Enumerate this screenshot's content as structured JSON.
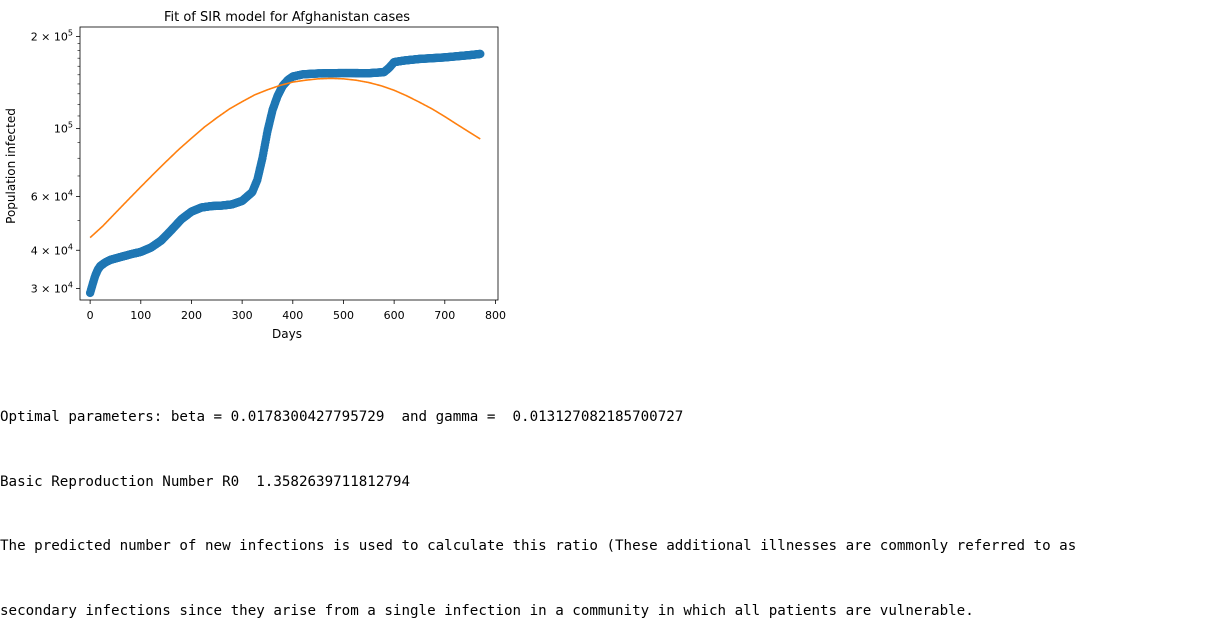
{
  "chart_data": {
    "type": "scatter",
    "title": "Fit of SIR model for Afghanistan cases",
    "xlabel": "Days",
    "ylabel": "Population infected",
    "xlim": [
      -20,
      805
    ],
    "ylim": [
      27500,
      215000
    ],
    "yscale": "log",
    "grid": false,
    "x_ticks": [
      0,
      100,
      200,
      300,
      400,
      500,
      600,
      700,
      800
    ],
    "y_ticks": [
      {
        "value": 30000,
        "mant": "3",
        "exp": "4"
      },
      {
        "value": 40000,
        "mant": "4",
        "exp": "4"
      },
      {
        "value": 60000,
        "mant": "6",
        "exp": "4"
      },
      {
        "value": 100000,
        "mant": "",
        "exp": "5"
      },
      {
        "value": 200000,
        "mant": "2",
        "exp": "5"
      }
    ],
    "series": [
      {
        "kind": "scatter",
        "color": "#1f77b4",
        "points": [
          [
            0,
            29000
          ],
          [
            5,
            31000
          ],
          [
            10,
            33000
          ],
          [
            15,
            34500
          ],
          [
            20,
            35500
          ],
          [
            30,
            36500
          ],
          [
            40,
            37200
          ],
          [
            60,
            38000
          ],
          [
            80,
            38800
          ],
          [
            100,
            39500
          ],
          [
            120,
            40800
          ],
          [
            140,
            43000
          ],
          [
            160,
            46500
          ],
          [
            180,
            50500
          ],
          [
            200,
            53500
          ],
          [
            220,
            55200
          ],
          [
            240,
            55800
          ],
          [
            260,
            56000
          ],
          [
            280,
            56500
          ],
          [
            300,
            58000
          ],
          [
            320,
            62000
          ],
          [
            330,
            68000
          ],
          [
            340,
            80000
          ],
          [
            350,
            98000
          ],
          [
            360,
            115000
          ],
          [
            370,
            128000
          ],
          [
            380,
            138000
          ],
          [
            390,
            144000
          ],
          [
            400,
            148000
          ],
          [
            420,
            150500
          ],
          [
            450,
            151500
          ],
          [
            500,
            152000
          ],
          [
            550,
            151800
          ],
          [
            580,
            153000
          ],
          [
            590,
            158000
          ],
          [
            600,
            165000
          ],
          [
            620,
            167000
          ],
          [
            650,
            169000
          ],
          [
            700,
            171000
          ],
          [
            750,
            174000
          ],
          [
            770,
            175500
          ]
        ]
      },
      {
        "kind": "line",
        "color": "#ff7f0e",
        "points": [
          [
            0,
            44000
          ],
          [
            25,
            48000
          ],
          [
            50,
            53000
          ],
          [
            75,
            58500
          ],
          [
            100,
            64500
          ],
          [
            125,
            71000
          ],
          [
            150,
            78000
          ],
          [
            175,
            85500
          ],
          [
            200,
            93000
          ],
          [
            225,
            101000
          ],
          [
            250,
            108500
          ],
          [
            275,
            116000
          ],
          [
            300,
            122500
          ],
          [
            325,
            129000
          ],
          [
            350,
            134000
          ],
          [
            375,
            138500
          ],
          [
            400,
            142000
          ],
          [
            425,
            144000
          ],
          [
            450,
            145500
          ],
          [
            475,
            146000
          ],
          [
            500,
            145500
          ],
          [
            525,
            144000
          ],
          [
            550,
            141500
          ],
          [
            575,
            138000
          ],
          [
            600,
            133500
          ],
          [
            625,
            128000
          ],
          [
            650,
            122000
          ],
          [
            675,
            116000
          ],
          [
            700,
            109500
          ],
          [
            725,
            103000
          ],
          [
            750,
            97000
          ],
          [
            770,
            92500
          ]
        ]
      }
    ]
  },
  "output": {
    "line1": "Optimal parameters: beta = 0.0178300427795729  and gamma =  0.013127082185700727",
    "line2": "Basic Reproduction Number R0  1.3582639711812794",
    "line3": "The predicted number of new infections is used to calculate this ratio (These additional illnesses are commonly referred to as",
    "line4": "secondary infections since they arise from a single infection in a community in which all patients are vulnerable."
  }
}
